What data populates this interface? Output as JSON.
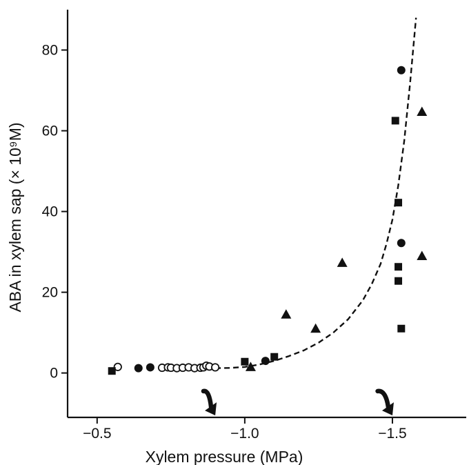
{
  "chart_data": {
    "type": "scatter",
    "title": "",
    "xlabel": "Xylem pressure (MPa)",
    "ylabel": "ABA in xylem sap (× 10⁹M)",
    "xlim": [
      -0.4,
      -1.75
    ],
    "ylim": [
      -11,
      90
    ],
    "x_ticks": [
      {
        "value": -0.5,
        "label": "−0.5"
      },
      {
        "value": -1.0,
        "label": "−1.0"
      },
      {
        "value": -1.5,
        "label": "−1.5"
      }
    ],
    "y_ticks": [
      {
        "value": 0,
        "label": "0"
      },
      {
        "value": 20,
        "label": "20"
      },
      {
        "value": 40,
        "label": "40"
      },
      {
        "value": 60,
        "label": "60"
      },
      {
        "value": 80,
        "label": "80"
      }
    ],
    "series": [
      {
        "marker": "circle-open",
        "points": [
          [
            -0.57,
            1.5
          ],
          [
            -0.72,
            1.3
          ],
          [
            -0.74,
            1.4
          ],
          [
            -0.75,
            1.3
          ],
          [
            -0.77,
            1.2
          ],
          [
            -0.79,
            1.3
          ],
          [
            -0.81,
            1.4
          ],
          [
            -0.83,
            1.2
          ],
          [
            -0.85,
            1.3
          ],
          [
            -0.86,
            1.4
          ],
          [
            -0.87,
            1.8
          ],
          [
            -0.88,
            1.6
          ],
          [
            -0.9,
            1.4
          ]
        ]
      },
      {
        "marker": "circle-filled",
        "points": [
          [
            -0.64,
            1.2
          ],
          [
            -0.68,
            1.4
          ],
          [
            -1.07,
            3.0
          ],
          [
            -1.53,
            32.2
          ],
          [
            -1.53,
            75.0
          ]
        ]
      },
      {
        "marker": "square-filled",
        "points": [
          [
            -0.55,
            0.5
          ],
          [
            -1.0,
            2.8
          ],
          [
            -1.1,
            4.0
          ],
          [
            -1.51,
            62.5
          ],
          [
            -1.52,
            42.2
          ],
          [
            -1.52,
            26.3
          ],
          [
            -1.52,
            22.8
          ],
          [
            -1.53,
            11.0
          ]
        ]
      },
      {
        "marker": "triangle-filled",
        "points": [
          [
            -1.02,
            1.5
          ],
          [
            -1.14,
            14.5
          ],
          [
            -1.24,
            11.0
          ],
          [
            -1.33,
            27.3
          ],
          [
            -1.6,
            64.7
          ],
          [
            -1.6,
            29.0
          ]
        ]
      }
    ],
    "fit_curve": {
      "style": "dashed",
      "points": [
        [
          -0.9,
          1.2
        ],
        [
          -0.95,
          1.25
        ],
        [
          -1.0,
          1.5
        ],
        [
          -1.05,
          2.1
        ],
        [
          -1.1,
          3.0
        ],
        [
          -1.15,
          4.2
        ],
        [
          -1.2,
          5.6
        ],
        [
          -1.25,
          7.5
        ],
        [
          -1.3,
          10.0
        ],
        [
          -1.35,
          13.3
        ],
        [
          -1.4,
          18.0
        ],
        [
          -1.43,
          22.0
        ],
        [
          -1.46,
          27.0
        ],
        [
          -1.48,
          32.0
        ],
        [
          -1.5,
          38.0
        ],
        [
          -1.52,
          46.5
        ],
        [
          -1.54,
          57.5
        ],
        [
          -1.56,
          72.0
        ],
        [
          -1.58,
          88.0
        ]
      ]
    },
    "arrows": [
      {
        "start": [
          -0.86,
          -4.5
        ],
        "end": [
          -0.9,
          -10.5
        ]
      },
      {
        "start": [
          -1.45,
          -4.5
        ],
        "end": [
          -1.5,
          -10.5
        ]
      }
    ],
    "legend": "none",
    "grid": false
  }
}
